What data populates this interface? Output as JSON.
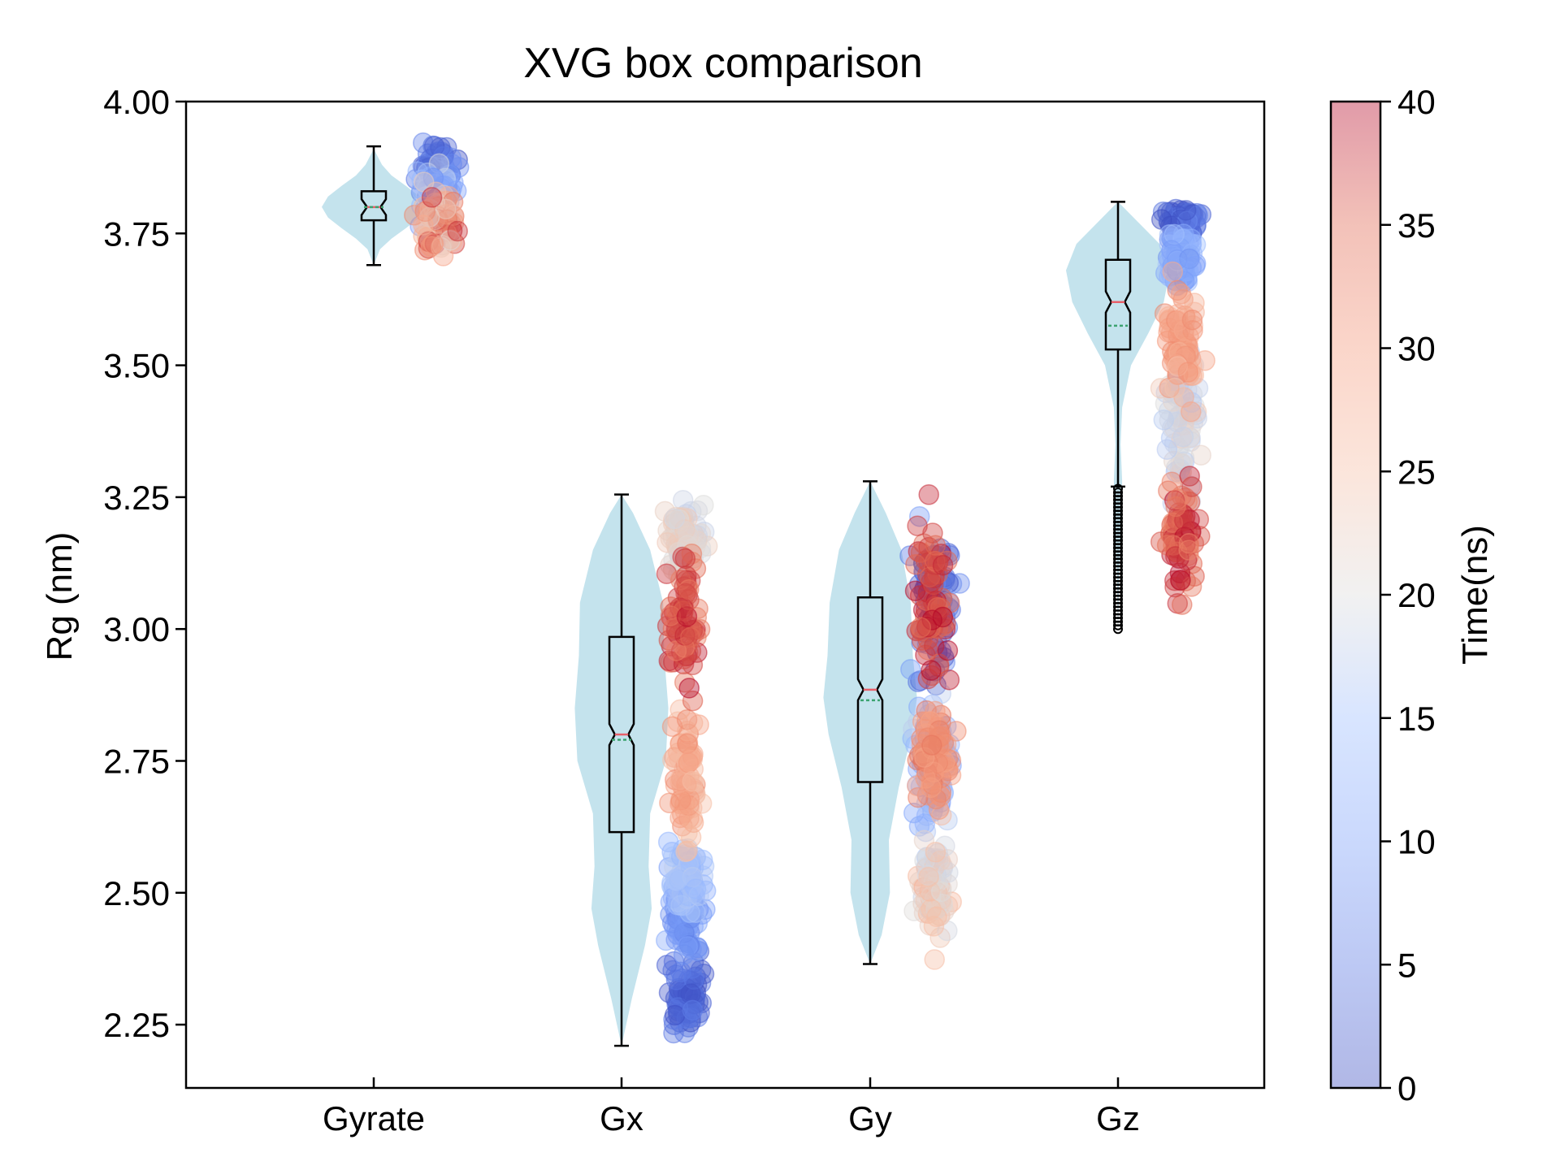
{
  "chart_data": {
    "type": "violin-box-scatter",
    "title": "XVG box comparison",
    "ylabel": "Rg (nm)",
    "xlabel": "",
    "categories": [
      "Gyrate",
      "Gx",
      "Gy",
      "Gz"
    ],
    "ylim": [
      2.13,
      4.0
    ],
    "yticks": [
      2.25,
      2.5,
      2.75,
      3.0,
      3.25,
      3.5,
      3.75,
      4.0
    ],
    "ytick_labels": [
      "2.25",
      "2.50",
      "2.75",
      "3.00",
      "3.25",
      "3.50",
      "3.75",
      "4.00"
    ],
    "colorbar": {
      "label": "Time(ns)",
      "range": [
        0,
        40
      ],
      "ticks": [
        0,
        5,
        10,
        15,
        20,
        25,
        30,
        35,
        40
      ],
      "colormap": "coolwarm",
      "alpha": 0.4
    },
    "colors": {
      "violin": "#add8e6",
      "median": "#e8606a",
      "mean": "#3ca370"
    },
    "series": [
      {
        "name": "Gyrate",
        "box": {
          "whisker_low": 3.69,
          "q1": 3.775,
          "median": 3.8,
          "mean": 3.8,
          "q3": 3.83,
          "whisker_high": 3.915
        },
        "violin": [
          [
            3.69,
            0.0
          ],
          [
            3.72,
            0.12
          ],
          [
            3.74,
            0.34
          ],
          [
            3.76,
            0.62
          ],
          [
            3.78,
            0.88
          ],
          [
            3.8,
            1.0
          ],
          [
            3.82,
            0.88
          ],
          [
            3.84,
            0.62
          ],
          [
            3.86,
            0.34
          ],
          [
            3.88,
            0.16
          ],
          [
            3.91,
            0.0
          ]
        ],
        "scatter_segments": [
          {
            "t": [
              0,
              8
            ],
            "center": 3.87,
            "spread": 0.04
          },
          {
            "t": [
              8,
              20
            ],
            "center": 3.82,
            "spread": 0.05
          },
          {
            "t": [
              20,
              40
            ],
            "center": 3.77,
            "spread": 0.05
          }
        ],
        "fliers": []
      },
      {
        "name": "Gx",
        "box": {
          "whisker_low": 2.21,
          "q1": 2.615,
          "median": 2.8,
          "mean": 2.79,
          "q3": 2.985,
          "whisker_high": 3.255
        },
        "violin": [
          [
            2.21,
            0.0
          ],
          [
            2.3,
            0.2
          ],
          [
            2.4,
            0.45
          ],
          [
            2.47,
            0.58
          ],
          [
            2.55,
            0.52
          ],
          [
            2.65,
            0.55
          ],
          [
            2.75,
            0.85
          ],
          [
            2.85,
            0.9
          ],
          [
            2.95,
            0.82
          ],
          [
            3.05,
            0.8
          ],
          [
            3.15,
            0.55
          ],
          [
            3.22,
            0.22
          ],
          [
            3.255,
            0.0
          ]
        ],
        "scatter_segments": [
          {
            "t": [
              0,
              6
            ],
            "center": 2.3,
            "spread": 0.06
          },
          {
            "t": [
              6,
              12
            ],
            "center": 2.45,
            "spread": 0.06
          },
          {
            "t": [
              12,
              18
            ],
            "center": 2.53,
            "spread": 0.05
          },
          {
            "t": [
              18,
              24
            ],
            "center": 3.18,
            "spread": 0.05
          },
          {
            "t": [
              24,
              32
            ],
            "center": 2.72,
            "spread": 0.12
          },
          {
            "t": [
              32,
              40
            ],
            "center": 3.02,
            "spread": 0.1
          }
        ],
        "fliers": []
      },
      {
        "name": "Gy",
        "box": {
          "whisker_low": 2.365,
          "q1": 2.71,
          "median": 2.885,
          "mean": 2.865,
          "q3": 3.06,
          "whisker_high": 3.28
        },
        "violin": [
          [
            2.365,
            0.0
          ],
          [
            2.42,
            0.22
          ],
          [
            2.5,
            0.38
          ],
          [
            2.6,
            0.36
          ],
          [
            2.7,
            0.55
          ],
          [
            2.8,
            0.8
          ],
          [
            2.87,
            0.9
          ],
          [
            2.95,
            0.82
          ],
          [
            3.05,
            0.78
          ],
          [
            3.15,
            0.6
          ],
          [
            3.22,
            0.3
          ],
          [
            3.28,
            0.0
          ]
        ],
        "scatter_segments": [
          {
            "t": [
              0,
              10
            ],
            "center": 3.05,
            "spread": 0.12
          },
          {
            "t": [
              10,
              18
            ],
            "center": 2.75,
            "spread": 0.1
          },
          {
            "t": [
              18,
              28
            ],
            "center": 2.5,
            "spread": 0.08
          },
          {
            "t": [
              28,
              34
            ],
            "center": 2.75,
            "spread": 0.08
          },
          {
            "t": [
              34,
              40
            ],
            "center": 3.05,
            "spread": 0.12
          }
        ],
        "fliers": []
      },
      {
        "name": "Gz",
        "box": {
          "whisker_low": 3.27,
          "q1": 3.53,
          "median": 3.62,
          "mean": 3.575,
          "q3": 3.7,
          "whisker_high": 3.81
        },
        "violin": [
          [
            2.99,
            0.0
          ],
          [
            3.1,
            0.02
          ],
          [
            3.2,
            0.06
          ],
          [
            3.28,
            0.08
          ],
          [
            3.35,
            0.05
          ],
          [
            3.42,
            0.08
          ],
          [
            3.5,
            0.25
          ],
          [
            3.56,
            0.58
          ],
          [
            3.62,
            0.88
          ],
          [
            3.68,
            1.0
          ],
          [
            3.73,
            0.8
          ],
          [
            3.77,
            0.4
          ],
          [
            3.81,
            0.0
          ]
        ],
        "scatter_segments": [
          {
            "t": [
              0,
              8
            ],
            "center": 3.77,
            "spread": 0.03
          },
          {
            "t": [
              8,
              16
            ],
            "center": 3.7,
            "spread": 0.05
          },
          {
            "t": [
              16,
              24
            ],
            "center": 3.4,
            "spread": 0.1
          },
          {
            "t": [
              24,
              32
            ],
            "center": 3.55,
            "spread": 0.1
          },
          {
            "t": [
              32,
              40
            ],
            "center": 3.18,
            "spread": 0.09
          }
        ],
        "fliers": [
          [
            3.0,
            3.27
          ]
        ]
      }
    ]
  }
}
